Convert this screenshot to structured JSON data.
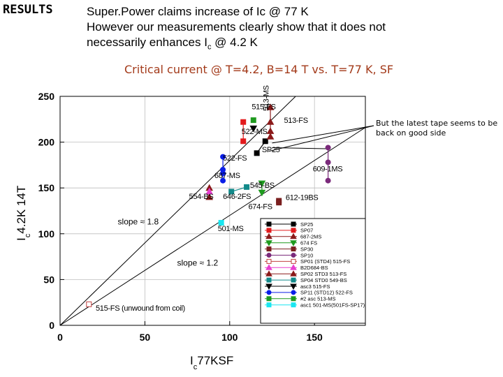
{
  "header": {
    "tag": "RESULTS",
    "line1": "Super.Power claims increase of   Ic @ 77 K",
    "line2": "However our measurements clearly show that it does not",
    "line3_a": "necessarily enhances I",
    "line3_sub": "c",
    "line3_b": " @ 4.2 K"
  },
  "subtitle": "Critical current @ T=4.2, B=14  T  vs. T=77 K, SF",
  "note": "But the latest tape seems to be back on good side",
  "colors": {
    "red": "#e31a1c",
    "black": "#000000",
    "dark_red": "#8b1a1a",
    "green": "#1f9a1f",
    "maroon": "#7a1f1f",
    "purple": "#7b2a7b",
    "salmon": "#c24040",
    "magenta": "#e83fd0",
    "teal": "#138a8a",
    "blue": "#0a1ee8",
    "cyan": "#19e6f0",
    "subtitle": "#a33a1a"
  },
  "chart_data": {
    "type": "scatter",
    "xlabel": "I",
    "xlabel_sub": "c",
    "xlabel_tail": "77KSF",
    "ylabel": "I",
    "ylabel_sub": "c",
    "ylabel_tail": "4.2K 14T",
    "xlim": [
      0,
      180
    ],
    "ylim": [
      0,
      250
    ],
    "xticks": [
      "0",
      "50",
      "100",
      "150"
    ],
    "yticks": [
      "0",
      "50",
      "100",
      "150",
      "200",
      "250"
    ],
    "slope_lines": [
      {
        "label": "slope ≈ 1.8",
        "slope": 1.8
      },
      {
        "label": "slope ≈ 1.2",
        "slope": 1.2
      }
    ],
    "annotations": [
      {
        "text": "515-FS",
        "x": 113,
        "y": 236,
        "rot": 0
      },
      {
        "text": "513-MS",
        "x": 123,
        "y": 234,
        "rot": -90
      },
      {
        "text": "522-MS",
        "x": 107,
        "y": 209,
        "rot": 0
      },
      {
        "text": "513-FS",
        "x": 132,
        "y": 221,
        "rot": 0
      },
      {
        "text": "SP25",
        "x": 119,
        "y": 189,
        "rot": 0
      },
      {
        "text": "522-FS",
        "x": 96,
        "y": 180,
        "rot": 0
      },
      {
        "text": "687-MS",
        "x": 91,
        "y": 161,
        "rot": 0
      },
      {
        "text": "609-1MS",
        "x": 149,
        "y": 168,
        "rot": 0
      },
      {
        "text": "545-BS",
        "x": 112,
        "y": 150,
        "rot": 0
      },
      {
        "text": "612-19BS",
        "x": 133,
        "y": 137,
        "rot": 0
      },
      {
        "text": "554-BS",
        "x": 76,
        "y": 138,
        "rot": 0
      },
      {
        "text": "646-2FS",
        "x": 96,
        "y": 138,
        "rot": 0
      },
      {
        "text": "674-FS",
        "x": 111,
        "y": 127,
        "rot": 0
      },
      {
        "text": "501-MS",
        "x": 93,
        "y": 103,
        "rot": 0
      },
      {
        "text": "515-FS (unwound from coil)",
        "x": 21,
        "y": 16,
        "rot": 0
      }
    ],
    "slope_label_pos": [
      {
        "x": 34,
        "y": 110
      },
      {
        "x": 69,
        "y": 65
      }
    ],
    "series": [
      {
        "name": "SP25",
        "color": "#000000",
        "marker": "square",
        "fill": true,
        "points": [
          [
            116,
            188
          ],
          [
            121,
            201
          ]
        ]
      },
      {
        "name": "SP07",
        "color": "#e31a1c",
        "marker": "square",
        "fill": true,
        "points": [
          [
            108,
            222
          ],
          [
            108,
            201
          ]
        ]
      },
      {
        "name": "687-2MS",
        "color": "#8b1a1a",
        "marker": "triangle",
        "fill": true,
        "points": [
          [
            88,
            150
          ],
          [
            88,
            140
          ]
        ]
      },
      {
        "name": "674 FS",
        "color": "#1f9a1f",
        "marker": "tri-down",
        "fill": true,
        "points": [
          [
            119,
            155
          ],
          [
            119,
            145
          ]
        ]
      },
      {
        "name": "SP30",
        "color": "#7a1f1f",
        "marker": "square",
        "fill": true,
        "points": [
          [
            129,
            136
          ],
          [
            129,
            134
          ]
        ]
      },
      {
        "name": "SP10",
        "color": "#7b2a7b",
        "marker": "circle",
        "fill": true,
        "points": [
          [
            158,
            194
          ],
          [
            158,
            178
          ],
          [
            158,
            158
          ]
        ]
      },
      {
        "name": "SP01 (STD4) 515-FS",
        "color": "#c24040",
        "marker": "square",
        "fill": false,
        "points": [
          [
            17,
            23
          ]
        ]
      },
      {
        "name": "B2D684-BS",
        "color": "#e83fd0",
        "marker": "triangle",
        "fill": true,
        "points": [
          [
            88,
            146
          ]
        ]
      },
      {
        "name": "SP02 STD3 513-FS",
        "color": "#8b1a1a",
        "marker": "triangle",
        "fill": true,
        "points": [
          [
            124,
            238
          ],
          [
            124,
            222
          ],
          [
            124,
            212
          ],
          [
            124,
            206
          ]
        ]
      },
      {
        "name": "SP04 STD0 549-BS",
        "color": "#138a8a",
        "marker": "square",
        "fill": true,
        "points": [
          [
            101,
            146
          ],
          [
            110,
            151
          ]
        ]
      },
      {
        "name": "asc3 515-FS",
        "color": "#000000",
        "marker": "tri-down",
        "fill": true,
        "points": [
          [
            114,
            215
          ]
        ]
      },
      {
        "name": "SP11 (STD12) 522-FS",
        "color": "#0a1ee8",
        "marker": "circle",
        "fill": true,
        "points": [
          [
            96,
            184
          ],
          [
            96,
            170
          ],
          [
            96,
            166
          ],
          [
            96,
            158
          ]
        ]
      },
      {
        "name": "#2 asc 513-MS",
        "color": "#1f9a1f",
        "marker": "square",
        "fill": true,
        "points": [
          [
            114,
            224
          ]
        ]
      },
      {
        "name": "asc1 501-MS(501FS-SP17)",
        "color": "#19e6f0",
        "marker": "square",
        "fill": true,
        "points": [
          [
            95,
            112
          ]
        ]
      }
    ]
  }
}
